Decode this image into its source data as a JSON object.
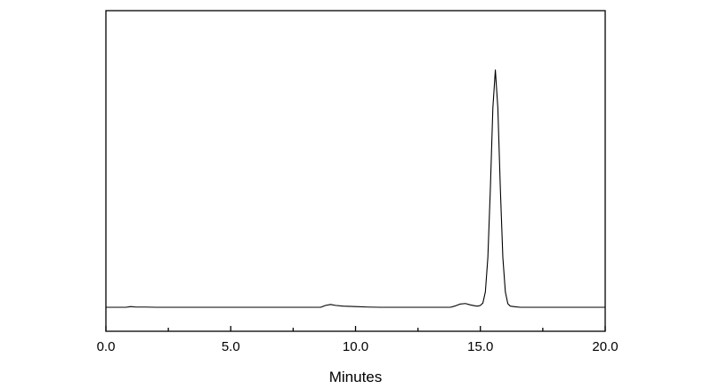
{
  "chart_data": {
    "type": "line",
    "title": "",
    "xlabel": "Minutes",
    "ylabel": "",
    "xlim": [
      0,
      20
    ],
    "ylim": [
      -10.1,
      125
    ],
    "x_ticks": [
      "0.0",
      "5.0",
      "10.0",
      "15.0",
      "20.0"
    ],
    "x_tick_values": [
      0,
      5,
      10,
      15,
      20
    ],
    "x_minor_tick_values": [
      2.5,
      7.5,
      12.5,
      17.5
    ],
    "y_ticks": [],
    "grid": false,
    "legend": "none",
    "line_color": "#000000",
    "series": [
      {
        "x": [
          0,
          0.8,
          1.0,
          1.2,
          1.6,
          2.0,
          5.0,
          8.6,
          8.8,
          9.0,
          9.2,
          9.5,
          10.0,
          10.5,
          11.0,
          13.8,
          14.0,
          14.2,
          14.4,
          14.6,
          14.8,
          14.9,
          15.0,
          15.1,
          15.2,
          15.3,
          15.4,
          15.5,
          15.6,
          15.7,
          15.8,
          15.9,
          16.0,
          16.1,
          16.2,
          16.4,
          16.6,
          20.0
        ],
        "y": [
          0,
          0,
          0.3,
          0.1,
          0.1,
          0,
          0,
          0,
          0.8,
          1.2,
          0.8,
          0.5,
          0.3,
          0.1,
          0,
          0,
          0.6,
          1.4,
          1.6,
          1.0,
          0.6,
          0.5,
          0.8,
          1.8,
          6.5,
          21,
          50,
          84,
          100,
          84,
          50,
          21,
          6.5,
          1.5,
          0.5,
          0.2,
          0,
          0
        ]
      }
    ]
  }
}
